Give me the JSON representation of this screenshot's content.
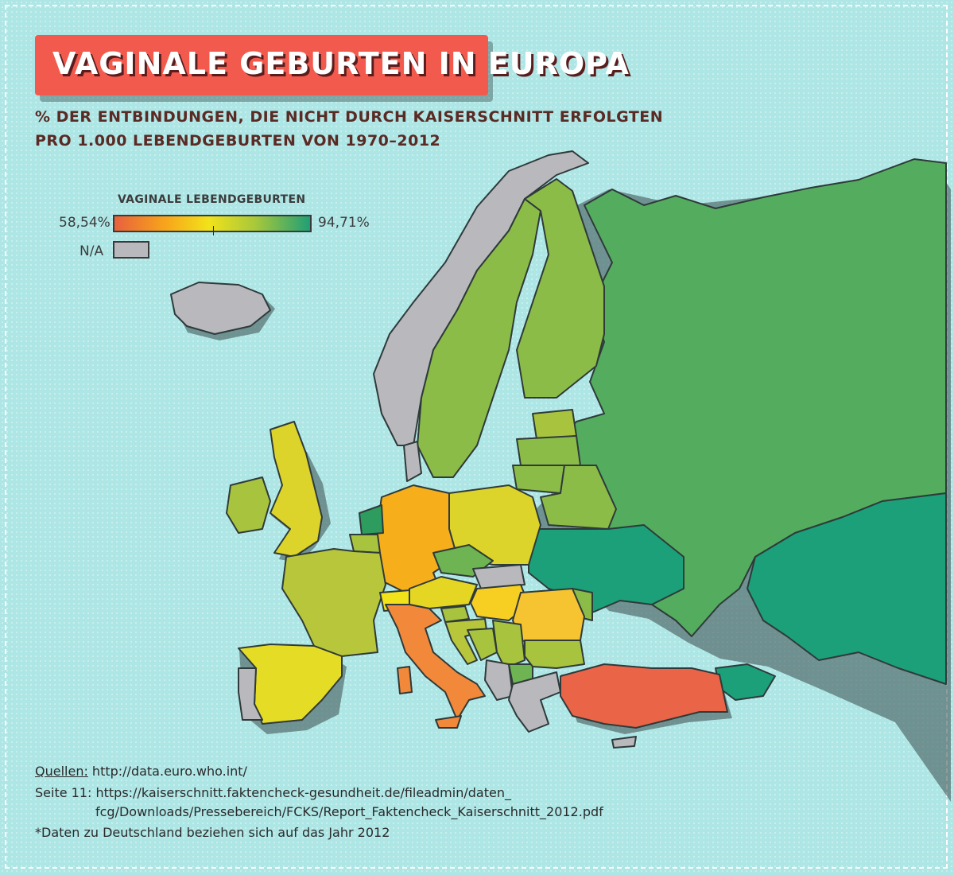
{
  "title": "VAGINALE GEBURTEN IN EUROPA",
  "subtitle_line1": "% DER ENTBINDUNGEN, DIE NICHT DURCH KAISERSCHNITT ERFOLGTEN",
  "subtitle_line2": "PRO 1.000 LEBENDGEBURTEN VON 1970–2012",
  "legend": {
    "title": "VAGINALE LEBENDGEBURTEN",
    "min_label": "58,54%",
    "max_label": "94,71%",
    "na_label": "N/A",
    "scale_min": 58.54,
    "scale_max": 94.71,
    "colors": [
      "#e8603e",
      "#f7a21b",
      "#f2e21a",
      "#a8c83a",
      "#1f9f76"
    ],
    "na_color": "#b9b9bd"
  },
  "sources": {
    "label": "Quellen:",
    "url1": " http://data.euro.who.int/",
    "line2": "Seite 11: https://kaiserschnitt.faktencheck-gesundheit.de/fileadmin/daten_",
    "line3": "fcg/Downloads/Pressebereich/FCKS/Report_Faktencheck_Kaiserschnitt_2012.pdf",
    "footnote": "*Daten zu Deutschland beziehen sich auf das Jahr 2012"
  }
}
